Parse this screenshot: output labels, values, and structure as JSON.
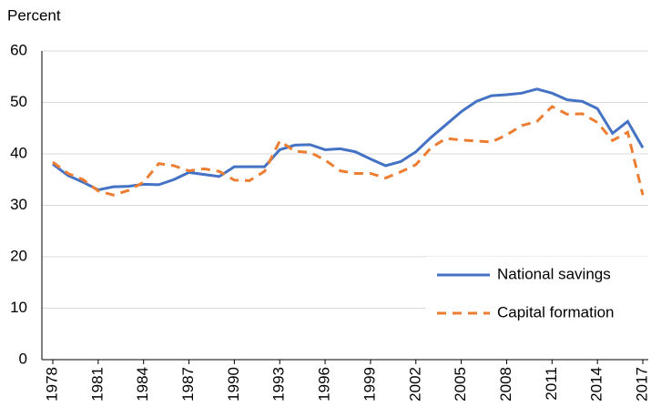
{
  "chart_data": {
    "type": "line",
    "y_label": "Percent",
    "x": [
      1978,
      1979,
      1980,
      1981,
      1982,
      1983,
      1984,
      1985,
      1986,
      1987,
      1988,
      1989,
      1990,
      1991,
      1992,
      1993,
      1994,
      1995,
      1996,
      1997,
      1998,
      1999,
      2000,
      2001,
      2002,
      2003,
      2004,
      2005,
      2006,
      2007,
      2008,
      2009,
      2010,
      2011,
      2012,
      2013,
      2014,
      2015,
      2016,
      2017
    ],
    "xlim": [
      1978,
      2017
    ],
    "xticks": [
      1978,
      1981,
      1984,
      1987,
      1990,
      1993,
      1996,
      1999,
      2002,
      2005,
      2008,
      2011,
      2014,
      2017
    ],
    "ylim": [
      0,
      60
    ],
    "yticks": [
      0,
      10,
      20,
      30,
      40,
      50,
      60
    ],
    "grid": true,
    "legend": "lower right",
    "series": [
      {
        "name": "National savings",
        "color": "#4472c4",
        "dash": false,
        "values": [
          38,
          35.8,
          34.5,
          33,
          33.6,
          33.7,
          34.1,
          34,
          35,
          36.4,
          36,
          35.6,
          37.5,
          37.5,
          37.5,
          40.8,
          41.7,
          41.8,
          40.8,
          41,
          40.4,
          39,
          37.7,
          38.5,
          40.4,
          43.2,
          45.7,
          48.2,
          50.2,
          51.3,
          51.5,
          51.8,
          52.6,
          51.8,
          50.5,
          50.2,
          48.8,
          44,
          46.3,
          41.2
        ]
      },
      {
        "name": "Capital formation",
        "color": "#ed7d31",
        "dash": true,
        "values": [
          38.4,
          36.2,
          35,
          32.8,
          32,
          32.9,
          34.5,
          38.1,
          37.7,
          36.7,
          37.1,
          36.6,
          34.9,
          34.8,
          36.6,
          42.5,
          40.5,
          40.3,
          38.8,
          36.7,
          36.2,
          36.2,
          35.3,
          36.5,
          37.9,
          41.2,
          43,
          42.7,
          42.5,
          42.3,
          43.7,
          45.5,
          46.3,
          49.2,
          47.7,
          47.8,
          46.1,
          42.6,
          44.2,
          32
        ]
      }
    ]
  }
}
